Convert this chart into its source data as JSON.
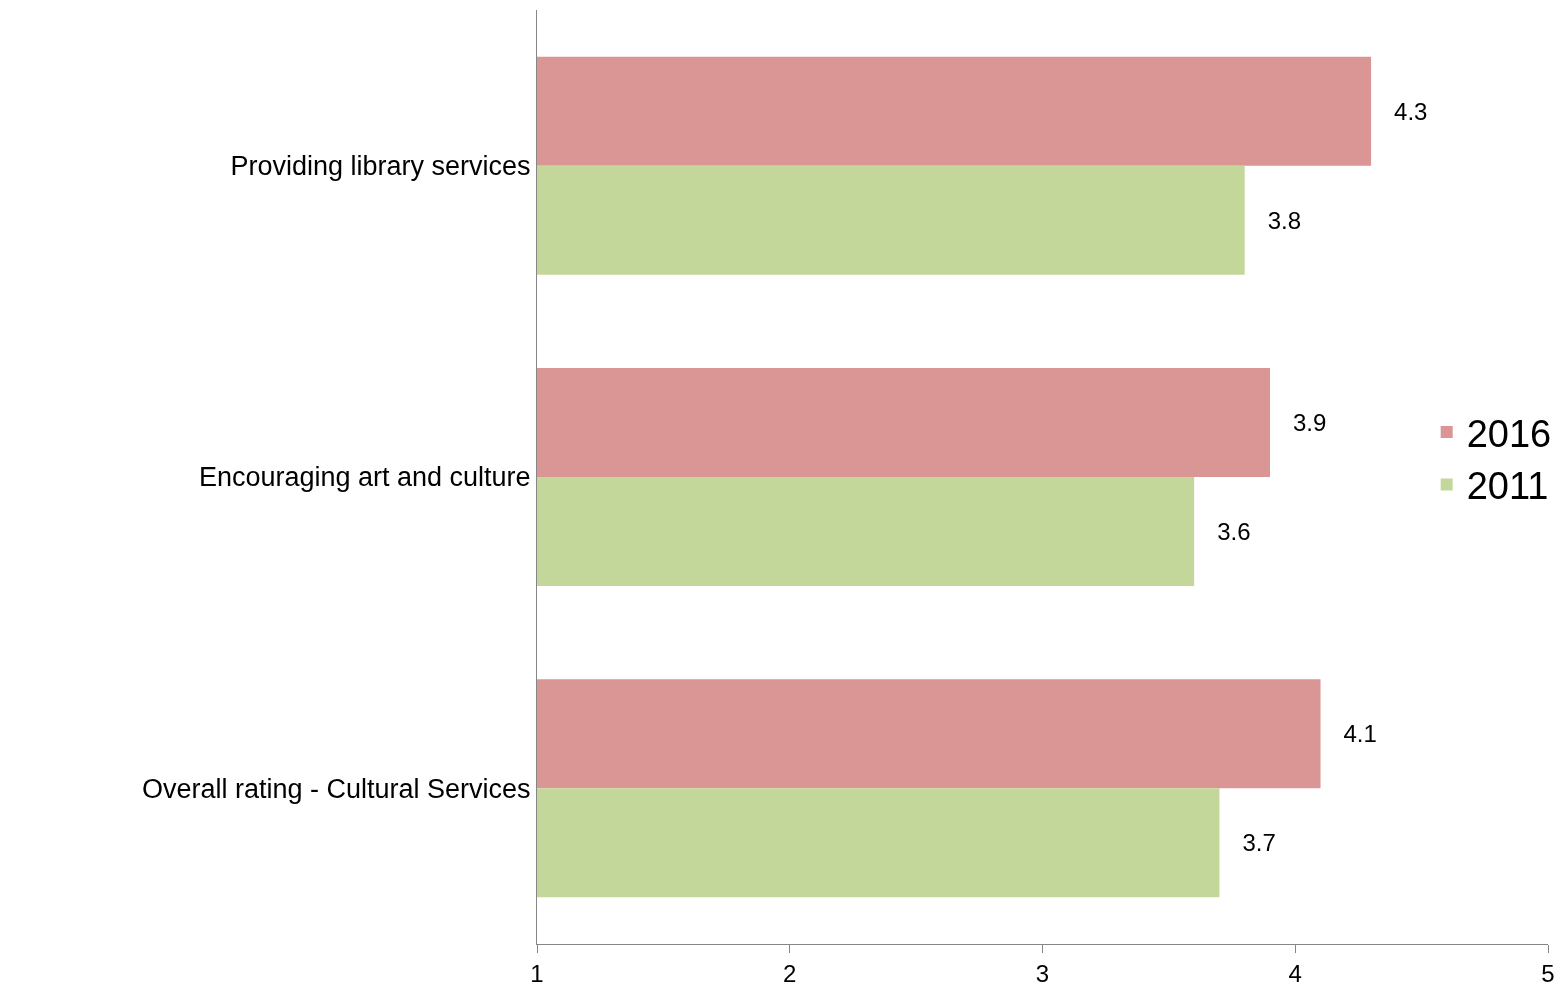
{
  "chart_data": {
    "type": "bar",
    "orientation": "horizontal",
    "categories": [
      "Providing library services",
      "Encouraging art and culture",
      "Overall rating - Cultural Services"
    ],
    "series": [
      {
        "name": "2016",
        "color": "#d99694",
        "values": [
          4.3,
          3.9,
          4.1
        ]
      },
      {
        "name": "2011",
        "color": "#c4d79b",
        "values": [
          3.8,
          3.6,
          3.7
        ]
      }
    ],
    "xlim": [
      1,
      5
    ],
    "xticks": [
      1,
      2,
      3,
      4,
      5
    ],
    "data_labels": true,
    "legend": "right"
  }
}
